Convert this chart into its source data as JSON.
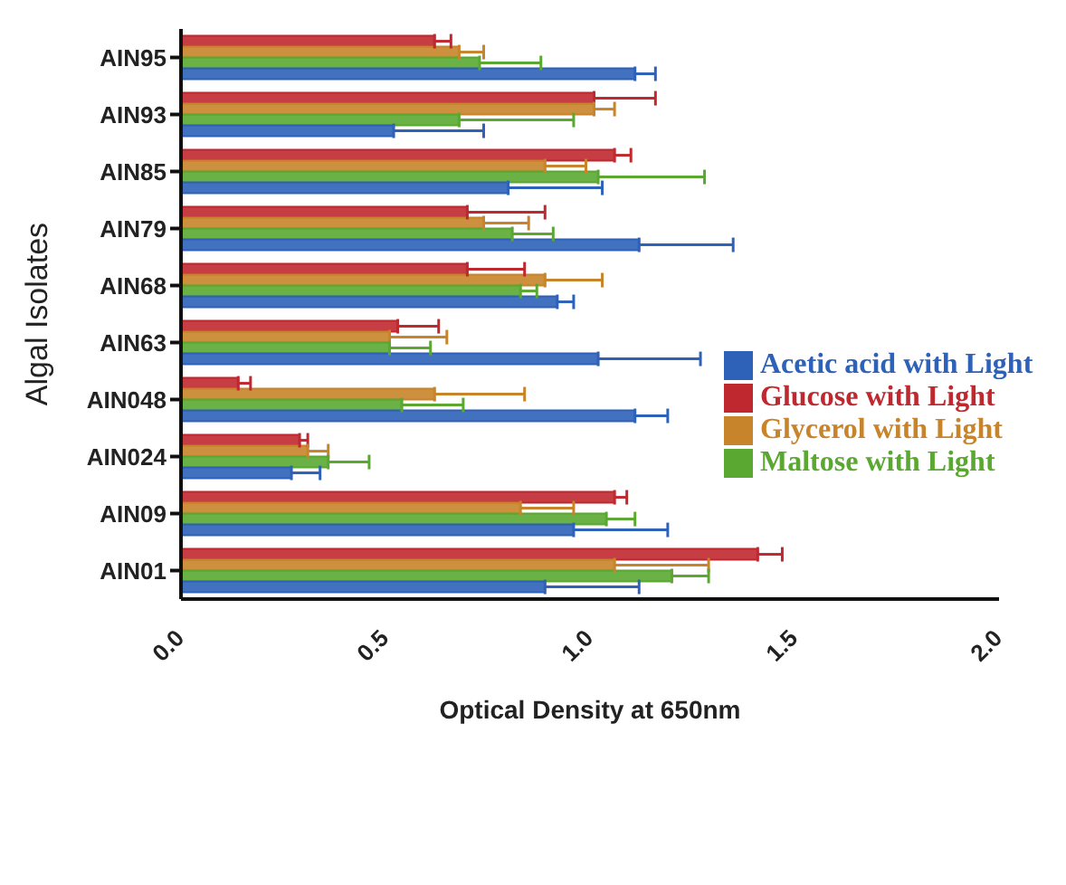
{
  "chart_data": {
    "type": "bar",
    "orientation": "horizontal",
    "ylabel": "Algal Isolates",
    "xlabel": "Optical Density at 650nm",
    "categories": [
      "AIN95",
      "AIN93",
      "AIN85",
      "AIN79",
      "AIN68",
      "AIN63",
      "AIN048",
      "AIN024",
      "AIN09",
      "AIN01"
    ],
    "xlim": [
      0,
      2
    ],
    "xticks": [
      {
        "value": 0,
        "label": "0.0"
      },
      {
        "value": 0.5,
        "label": "0.5"
      },
      {
        "value": 1,
        "label": "1.0"
      },
      {
        "value": 1.5,
        "label": "1.5"
      },
      {
        "value": 2,
        "label": "2.0"
      }
    ],
    "legend": "right",
    "grid": false,
    "series": [
      {
        "name": "Glucose with Light",
        "color": "#c0282f",
        "values": [
          0.62,
          1.01,
          1.06,
          0.7,
          0.7,
          0.53,
          0.14,
          0.29,
          1.06,
          1.41
        ],
        "errors": [
          [
            0.62,
            0.66
          ],
          [
            1.01,
            1.16
          ],
          [
            1.06,
            1.1
          ],
          [
            0.7,
            0.89
          ],
          [
            0.7,
            0.84
          ],
          [
            0.53,
            0.63
          ],
          [
            0.14,
            0.17
          ],
          [
            0.29,
            0.31
          ],
          [
            1.06,
            1.09
          ],
          [
            1.41,
            1.47
          ]
        ]
      },
      {
        "name": "Glycerol with Light",
        "color": "#c8842a",
        "values": [
          0.68,
          1.01,
          0.89,
          0.74,
          0.89,
          0.51,
          0.62,
          0.31,
          0.83,
          1.06
        ],
        "errors": [
          [
            0.68,
            0.74
          ],
          [
            1.01,
            1.06
          ],
          [
            0.89,
            0.99
          ],
          [
            0.74,
            0.85
          ],
          [
            0.89,
            1.03
          ],
          [
            0.51,
            0.65
          ],
          [
            0.62,
            0.84
          ],
          [
            0.31,
            0.36
          ],
          [
            0.83,
            0.96
          ],
          [
            1.06,
            1.29
          ]
        ]
      },
      {
        "name": "Maltose with Light",
        "color": "#5aa832",
        "values": [
          0.73,
          0.68,
          1.02,
          0.81,
          0.83,
          0.51,
          0.54,
          0.36,
          1.04,
          1.2
        ],
        "errors": [
          [
            0.73,
            0.88
          ],
          [
            0.68,
            0.96
          ],
          [
            1.02,
            1.28
          ],
          [
            0.81,
            0.91
          ],
          [
            0.83,
            0.87
          ],
          [
            0.51,
            0.61
          ],
          [
            0.54,
            0.69
          ],
          [
            0.36,
            0.46
          ],
          [
            1.04,
            1.11
          ],
          [
            1.2,
            1.29
          ]
        ]
      },
      {
        "name": "Acetic acid with Light",
        "color": "#2e62b8",
        "values": [
          1.11,
          0.52,
          0.8,
          1.12,
          0.92,
          1.02,
          1.11,
          0.27,
          0.96,
          0.89
        ],
        "errors": [
          [
            1.11,
            1.16
          ],
          [
            0.52,
            0.74
          ],
          [
            0.8,
            1.03
          ],
          [
            1.12,
            1.35
          ],
          [
            0.92,
            0.96
          ],
          [
            1.02,
            1.27
          ],
          [
            1.11,
            1.19
          ],
          [
            0.27,
            0.34
          ],
          [
            0.96,
            1.19
          ],
          [
            0.89,
            1.12
          ]
        ]
      }
    ]
  }
}
